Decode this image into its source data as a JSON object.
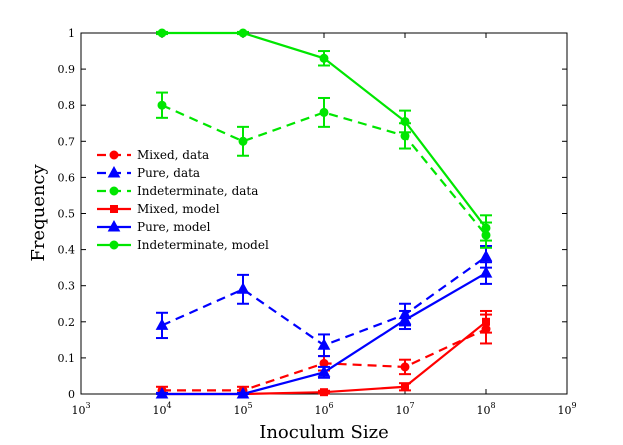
{
  "chart_data": {
    "type": "line",
    "title": "",
    "xlabel": "Inoculum Size",
    "ylabel": "Frequency",
    "xscale": "log",
    "xlim": [
      1000,
      1000000000
    ],
    "ylim": [
      0,
      1
    ],
    "x_tick_exponents": [
      "3",
      "4",
      "5",
      "6",
      "7",
      "8",
      "9"
    ],
    "x_tick_base": "10",
    "y_ticks": [
      "0",
      "0.1",
      "0.2",
      "0.3",
      "0.4",
      "0.5",
      "0.6",
      "0.7",
      "0.8",
      "0.9",
      "1"
    ],
    "legend_position": "middle-left",
    "x": [
      10000,
      100000,
      1000000,
      10000000,
      100000000
    ],
    "series": [
      {
        "name": "Mixed, data",
        "color": "#ff0000",
        "dash": "dashed",
        "marker": "circle",
        "values": [
          0.01,
          0.01,
          0.085,
          0.075,
          0.18
        ],
        "errors": [
          0.01,
          0.01,
          0.02,
          0.02,
          0.04
        ]
      },
      {
        "name": "Pure, data",
        "color": "#0000ff",
        "dash": "dashed",
        "marker": "triangle",
        "values": [
          0.19,
          0.29,
          0.135,
          0.22,
          0.38
        ],
        "errors": [
          0.035,
          0.04,
          0.03,
          0.03,
          0.03
        ]
      },
      {
        "name": "Indeterminate, data",
        "color": "#00e600",
        "dash": "dashed",
        "marker": "circle",
        "values": [
          0.8,
          0.7,
          0.78,
          0.715,
          0.44
        ],
        "errors": [
          0.035,
          0.04,
          0.04,
          0.035,
          0.035
        ]
      },
      {
        "name": "Mixed, model",
        "color": "#ff0000",
        "dash": "solid",
        "marker": "square",
        "values": [
          0.0,
          0.0,
          0.005,
          0.02,
          0.2
        ],
        "errors": [
          0.003,
          0.003,
          0.004,
          0.01,
          0.03
        ]
      },
      {
        "name": "Pure, model",
        "color": "#0000ff",
        "dash": "solid",
        "marker": "triangle",
        "values": [
          0.0,
          0.0,
          0.06,
          0.205,
          0.335
        ],
        "errors": [
          0.003,
          0.003,
          0.015,
          0.025,
          0.03
        ]
      },
      {
        "name": "Indeterminate, model",
        "color": "#00e600",
        "dash": "solid",
        "marker": "circle",
        "values": [
          1.0,
          1.0,
          0.93,
          0.755,
          0.46
        ],
        "errors": [
          0.003,
          0.003,
          0.02,
          0.03,
          0.035
        ]
      }
    ]
  }
}
